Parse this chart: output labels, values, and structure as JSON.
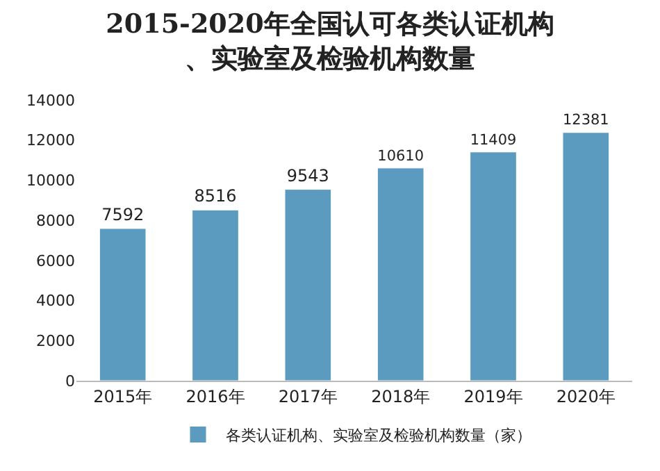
{
  "chart_data": {
    "type": "bar",
    "title": "2015-2020年全国认可各类认证机构、实验室及检验机构数量",
    "categories": [
      "2015年",
      "2016年",
      "2017年",
      "2018年",
      "2019年",
      "2020年"
    ],
    "series": [
      {
        "name": "各类认证机构、实验室及检验机构数量（家）",
        "color": "#5b9bc0",
        "values": [
          7592,
          8516,
          9543,
          10610,
          11409,
          12381
        ]
      }
    ],
    "ylim": [
      0,
      14000
    ],
    "yticks": [
      0,
      2000,
      4000,
      6000,
      8000,
      10000,
      12000,
      14000
    ],
    "data_labels": true,
    "grid": false,
    "legend": "bottom"
  }
}
